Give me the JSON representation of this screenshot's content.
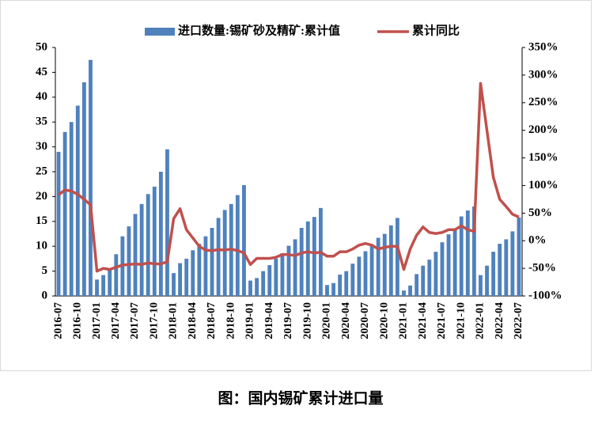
{
  "chart_data": {
    "type": "bar-line",
    "categories": [
      "2016-07",
      null,
      null,
      "2016-10",
      null,
      null,
      "2017-01",
      null,
      null,
      "2017-04",
      null,
      null,
      "2017-07",
      null,
      null,
      "2017-10",
      null,
      null,
      "2018-01",
      null,
      null,
      "2018-04",
      null,
      null,
      "2018-07",
      null,
      null,
      "2018-10",
      null,
      null,
      "2019-01",
      null,
      null,
      "2019-04",
      null,
      null,
      "2019-07",
      null,
      null,
      "2019-10",
      null,
      null,
      "2020-01",
      null,
      null,
      "2020-04",
      null,
      null,
      "2020-07",
      null,
      null,
      "2020-10",
      null,
      null,
      "2021-01",
      null,
      null,
      "2021-04",
      null,
      null,
      "2021-07",
      null,
      null,
      "2021-10",
      null,
      null,
      "2022-01",
      null,
      null,
      "2022-04",
      null,
      null,
      "2022-07"
    ],
    "series": [
      {
        "name": "进口数量:锡矿砂及精矿:累计值",
        "color": "#4f81bd",
        "type": "bar",
        "values": [
          29,
          33,
          35,
          38.3,
          43,
          47.5,
          3.3,
          4.2,
          5.5,
          8.4,
          12,
          14,
          16.5,
          18.5,
          20.5,
          22,
          25,
          29.5,
          4.6,
          6.6,
          7.5,
          9.2,
          10.5,
          12,
          13.7,
          15.7,
          17.3,
          18.5,
          20.3,
          22.3,
          3.1,
          3.6,
          5,
          6.2,
          7.5,
          8.6,
          10.1,
          11.4,
          13.7,
          15,
          15.9,
          17.7,
          2.2,
          2.6,
          4.3,
          5,
          6.5,
          7.9,
          9,
          10.2,
          11.7,
          12.5,
          14.2,
          15.7,
          1.1,
          2.1,
          4.4,
          6.1,
          7.3,
          8.9,
          10.8,
          12.4,
          13.6,
          16,
          17.2,
          18,
          4.2,
          6.1,
          8.9,
          10.5,
          11.4,
          13,
          15.8
        ]
      },
      {
        "name": "累计同比",
        "color": "#c0504d",
        "type": "line",
        "axis": "y2",
        "values": [
          83,
          92,
          90,
          84,
          75,
          65,
          -55,
          -50,
          -52,
          -48,
          -44,
          -43,
          -42,
          -43,
          -40,
          -42,
          -42,
          -38,
          40,
          58,
          20,
          5,
          -10,
          -17,
          -18,
          -16,
          -17,
          -15,
          -18,
          -22,
          -43,
          -32,
          -32,
          -32,
          -30,
          -25,
          -25,
          -27,
          -22,
          -20,
          -22,
          -21,
          -28,
          -28,
          -20,
          -20,
          -15,
          -8,
          -5,
          -8,
          -15,
          -12,
          -10,
          -10,
          -52,
          -15,
          10,
          25,
          15,
          13,
          15,
          20,
          20,
          27,
          20,
          17,
          285,
          200,
          115,
          75,
          62,
          48,
          43
        ]
      }
    ],
    "ylim": [
      0,
      50
    ],
    "yticks": [
      0,
      5,
      10,
      15,
      20,
      25,
      30,
      35,
      40,
      45,
      50
    ],
    "y2lim": [
      -100,
      350
    ],
    "y2ticks": [
      {
        "value": -100,
        "label": "-100%"
      },
      {
        "value": -50,
        "label": "-50%"
      },
      {
        "value": 0,
        "label": "0%"
      },
      {
        "value": 50,
        "label": "50%"
      },
      {
        "value": 100,
        "label": "100%"
      },
      {
        "value": 150,
        "label": "150%"
      },
      {
        "value": 200,
        "label": "200%"
      },
      {
        "value": 250,
        "label": "250%"
      },
      {
        "value": 300,
        "label": "300%"
      },
      {
        "value": 350,
        "label": "350%"
      }
    ],
    "caption": "图：国内锡矿累计进口量"
  }
}
